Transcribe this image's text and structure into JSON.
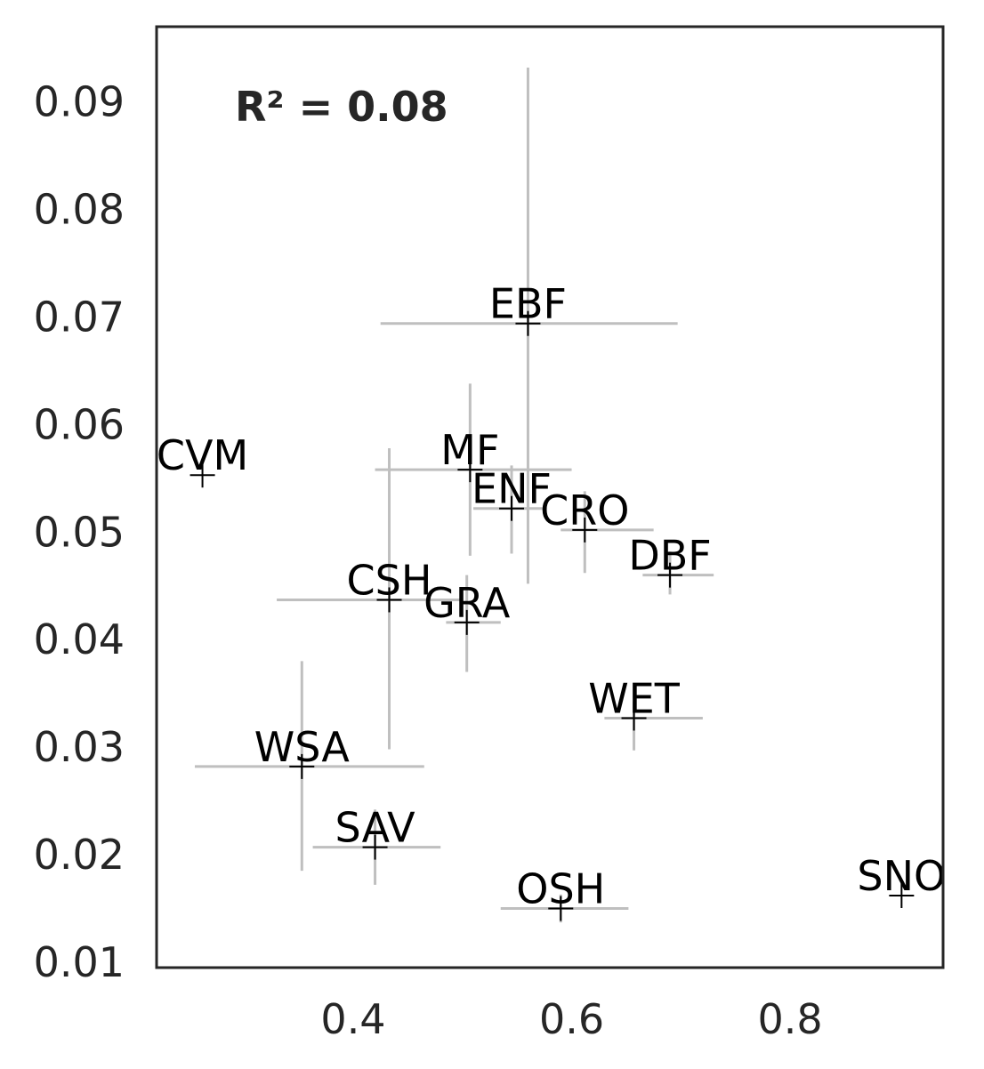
{
  "chart_data": {
    "type": "scatter",
    "title": "",
    "xlabel": "",
    "ylabel": "",
    "annotation": "R² = 0.08",
    "xlim": [
      0.22,
      0.94
    ],
    "ylim": [
      0.0095,
      0.097
    ],
    "xticks": [
      0.4,
      0.6,
      0.8
    ],
    "xtick_labels": [
      "0.4",
      "0.6",
      "0.8"
    ],
    "yticks": [
      0.01,
      0.02,
      0.03,
      0.04,
      0.05,
      0.06,
      0.07,
      0.08,
      0.09
    ],
    "ytick_labels": [
      "0.01",
      "0.02",
      "0.03",
      "0.04",
      "0.05",
      "0.06",
      "0.07",
      "0.08",
      "0.09"
    ],
    "grid": false,
    "points": [
      {
        "label": "EBF",
        "x": 0.56,
        "y": 0.0694,
        "xerr": [
          0.425,
          0.697
        ],
        "yerr": [
          0.0452,
          0.0932
        ]
      },
      {
        "label": "MF",
        "x": 0.507,
        "y": 0.0558,
        "xerr": [
          0.42,
          0.6
        ],
        "yerr": [
          0.0478,
          0.0638
        ]
      },
      {
        "label": "ENF",
        "x": 0.545,
        "y": 0.0522,
        "xerr": [
          0.51,
          0.575
        ],
        "yerr": [
          0.048,
          0.0562
        ]
      },
      {
        "label": "CRO",
        "x": 0.612,
        "y": 0.0502,
        "xerr": [
          0.59,
          0.675
        ],
        "yerr": [
          0.0462,
          0.0538
        ]
      },
      {
        "label": "DBF",
        "x": 0.69,
        "y": 0.046,
        "xerr": [
          0.665,
          0.73
        ],
        "yerr": [
          0.0442,
          0.0482
        ]
      },
      {
        "label": "CSH",
        "x": 0.433,
        "y": 0.0437,
        "xerr": [
          0.33,
          0.5
        ],
        "yerr": [
          0.0298,
          0.0578
        ]
      },
      {
        "label": "GRA",
        "x": 0.504,
        "y": 0.0416,
        "xerr": [
          0.485,
          0.535
        ],
        "yerr": [
          0.037,
          0.046
        ]
      },
      {
        "label": "WET",
        "x": 0.657,
        "y": 0.0327,
        "xerr": [
          0.63,
          0.72
        ],
        "yerr": [
          0.0297,
          0.0342
        ]
      },
      {
        "label": "WSA",
        "x": 0.353,
        "y": 0.0282,
        "xerr": [
          0.255,
          0.465
        ],
        "yerr": [
          0.0185,
          0.038
        ]
      },
      {
        "label": "SAV",
        "x": 0.42,
        "y": 0.0207,
        "xerr": [
          0.363,
          0.48
        ],
        "yerr": [
          0.0172,
          0.0242
        ]
      },
      {
        "label": "OSH",
        "x": 0.59,
        "y": 0.015,
        "xerr": [
          0.535,
          0.652
        ],
        "yerr": [
          0.0137,
          0.0163
        ]
      },
      {
        "label": "CVM",
        "x": 0.262,
        "y": 0.0553,
        "xerr": null,
        "yerr": null
      },
      {
        "label": "SNO",
        "x": 0.902,
        "y": 0.0162,
        "xerr": null,
        "yerr": null
      }
    ],
    "colors": {
      "marker": "#000000",
      "errorbar": "#bfbfbf",
      "axes": "#262626"
    }
  }
}
